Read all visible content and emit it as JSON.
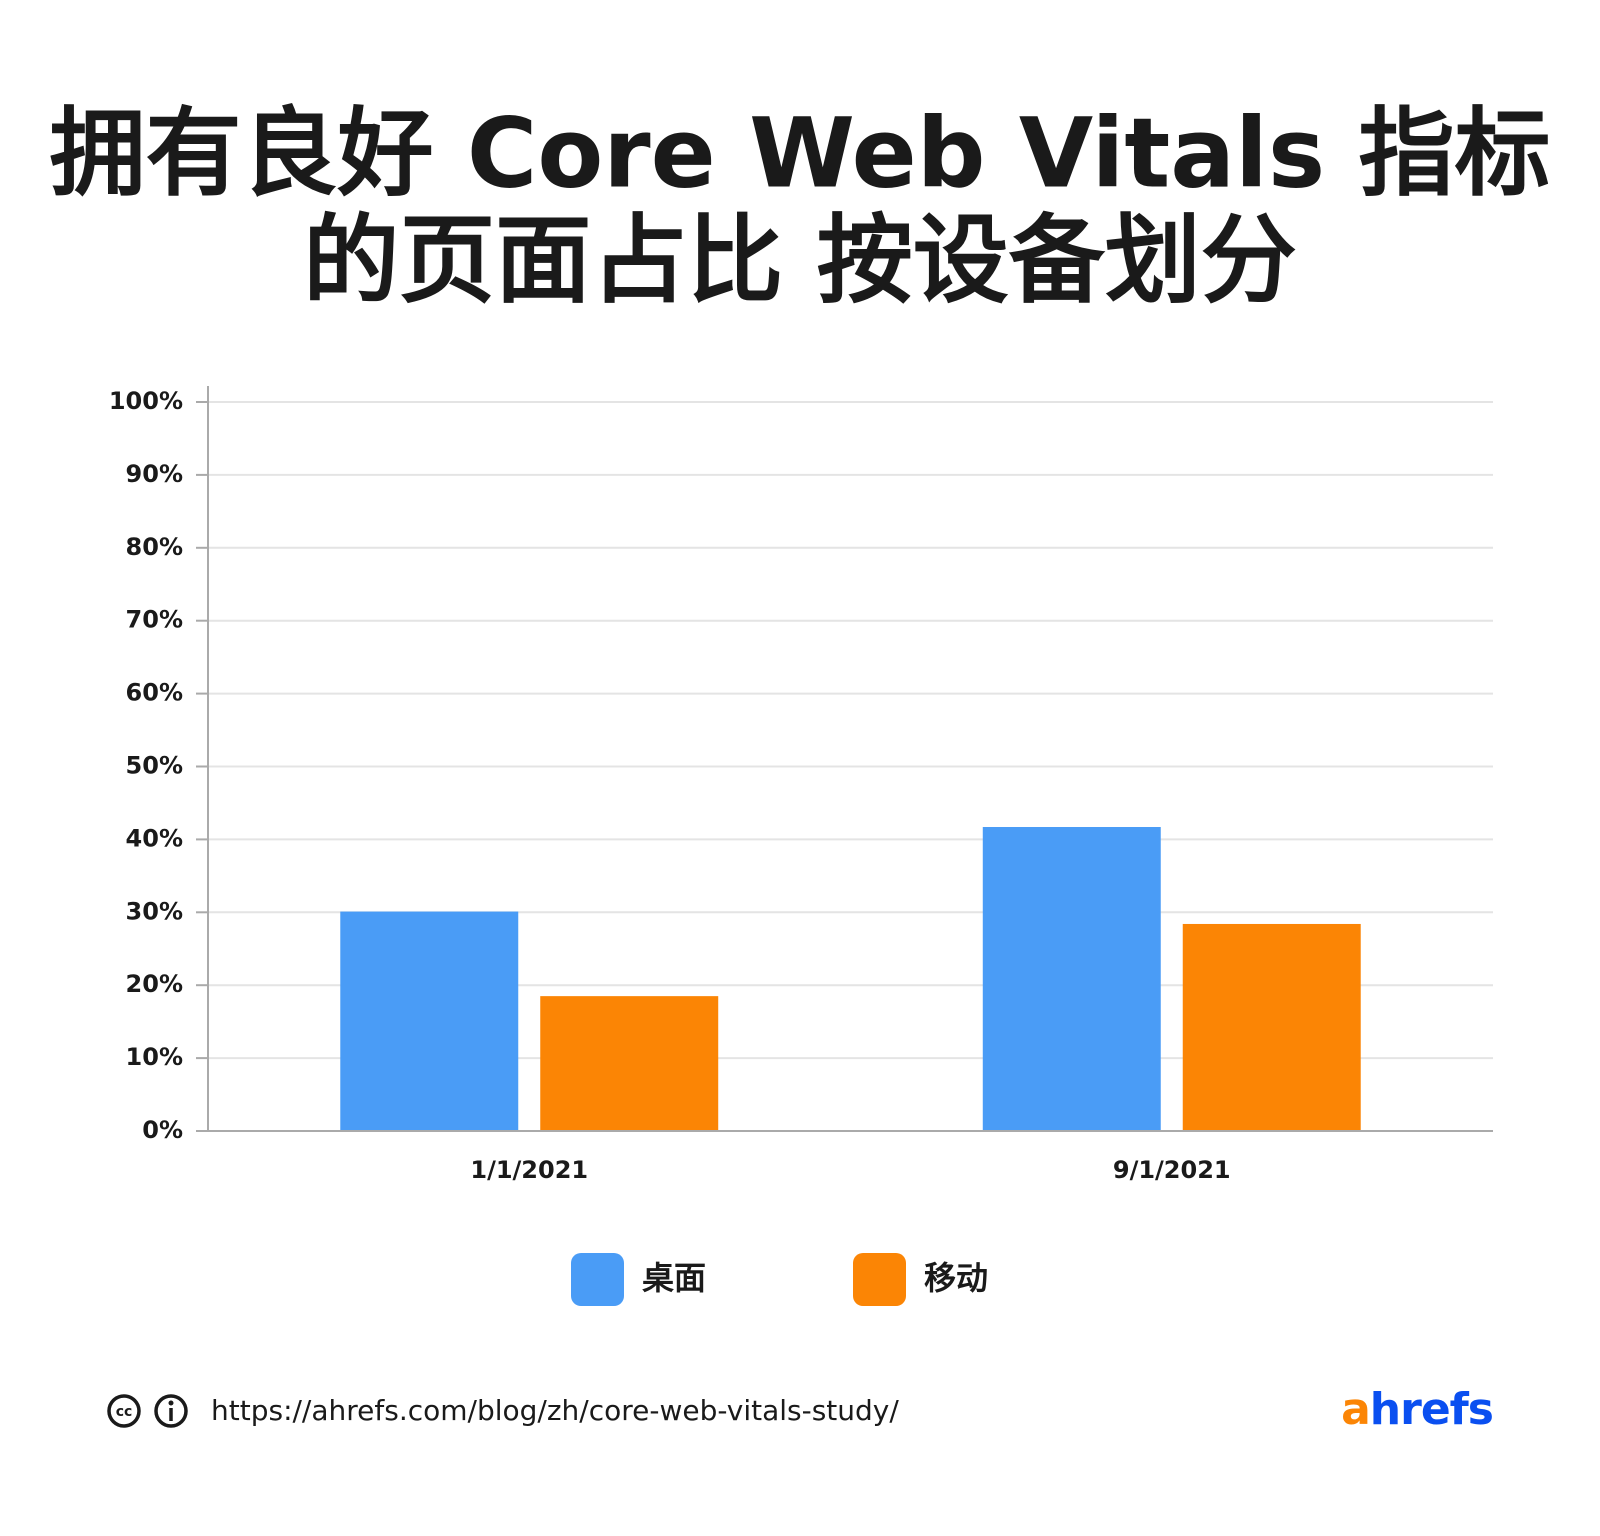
{
  "chart_data": {
    "type": "bar",
    "title": [
      "拥有良好 Core Web Vitals 指标",
      "的页面占比 按设备划分"
    ],
    "categories": [
      "1/1/2021",
      "9/1/2021"
    ],
    "series": [
      {
        "name": "桌面",
        "color": "#4a9cf6",
        "values": [
          30.1,
          41.7
        ]
      },
      {
        "name": "移动",
        "color": "#fb8505",
        "values": [
          18.5,
          28.4
        ]
      }
    ],
    "ylim": [
      0,
      100
    ],
    "yticks": [
      {
        "value": 0,
        "label": "0%"
      },
      {
        "value": 10,
        "label": "10%"
      },
      {
        "value": 20,
        "label": "20%"
      },
      {
        "value": 30,
        "label": "30%"
      },
      {
        "value": 40,
        "label": "40%"
      },
      {
        "value": 50,
        "label": "50%"
      },
      {
        "value": 60,
        "label": "60%"
      },
      {
        "value": 70,
        "label": "70%"
      },
      {
        "value": 80,
        "label": "80%"
      },
      {
        "value": 90,
        "label": "90%"
      },
      {
        "value": 100,
        "label": "100%"
      }
    ],
    "grid": true,
    "source": "https://ahrefs.com/blog/zh/core-web-vitals-study/",
    "logo": "ahrefs"
  }
}
